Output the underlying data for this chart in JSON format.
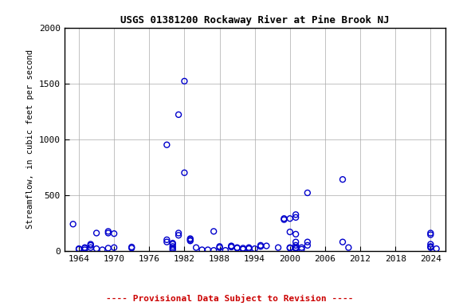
{
  "title": "USGS 01381200 Rockaway River at Pine Brook NJ",
  "ylabel": "Streamflow, in cubic feet per second",
  "xlim": [
    1961.5,
    2026.5
  ],
  "ylim": [
    0,
    2000
  ],
  "yticks": [
    0,
    500,
    1000,
    1500,
    2000
  ],
  "xticks": [
    1964,
    1970,
    1976,
    1982,
    1988,
    1994,
    2000,
    2006,
    2012,
    2018,
    2024
  ],
  "marker_color": "#0000CC",
  "marker_size": 5,
  "grid_color": "#aaaaaa",
  "background_color": "#ffffff",
  "footer_text": "---- Provisional Data Subject to Revision ----",
  "footer_color": "#cc0000",
  "data_points": [
    [
      1963,
      240
    ],
    [
      1964,
      20
    ],
    [
      1964,
      15
    ],
    [
      1965,
      30
    ],
    [
      1965,
      25
    ],
    [
      1965,
      10
    ],
    [
      1966,
      60
    ],
    [
      1966,
      50
    ],
    [
      1966,
      30
    ],
    [
      1967,
      160
    ],
    [
      1967,
      20
    ],
    [
      1968,
      10
    ],
    [
      1969,
      175
    ],
    [
      1969,
      160
    ],
    [
      1969,
      25
    ],
    [
      1970,
      155
    ],
    [
      1970,
      30
    ],
    [
      1973,
      35
    ],
    [
      1973,
      25
    ],
    [
      1979,
      950
    ],
    [
      1979,
      100
    ],
    [
      1979,
      80
    ],
    [
      1980,
      70
    ],
    [
      1980,
      60
    ],
    [
      1980,
      40
    ],
    [
      1980,
      25
    ],
    [
      1980,
      10
    ],
    [
      1981,
      1220
    ],
    [
      1981,
      160
    ],
    [
      1981,
      140
    ],
    [
      1982,
      1520
    ],
    [
      1982,
      700
    ],
    [
      1983,
      110
    ],
    [
      1983,
      100
    ],
    [
      1983,
      90
    ],
    [
      1984,
      30
    ],
    [
      1985,
      10
    ],
    [
      1986,
      10
    ],
    [
      1987,
      175
    ],
    [
      1987,
      5
    ],
    [
      1988,
      40
    ],
    [
      1988,
      30
    ],
    [
      1989,
      5
    ],
    [
      1990,
      45
    ],
    [
      1990,
      40
    ],
    [
      1990,
      35
    ],
    [
      1991,
      30
    ],
    [
      1991,
      25
    ],
    [
      1992,
      25
    ],
    [
      1992,
      15
    ],
    [
      1993,
      30
    ],
    [
      1993,
      20
    ],
    [
      1994,
      20
    ],
    [
      1995,
      50
    ],
    [
      1995,
      40
    ],
    [
      1996,
      45
    ],
    [
      1998,
      30
    ],
    [
      1999,
      290
    ],
    [
      1999,
      280
    ],
    [
      2000,
      290
    ],
    [
      2000,
      170
    ],
    [
      2000,
      30
    ],
    [
      2000,
      25
    ],
    [
      2001,
      325
    ],
    [
      2001,
      300
    ],
    [
      2001,
      150
    ],
    [
      2001,
      80
    ],
    [
      2001,
      50
    ],
    [
      2001,
      30
    ],
    [
      2001,
      25
    ],
    [
      2001,
      20
    ],
    [
      2002,
      30
    ],
    [
      2002,
      15
    ],
    [
      2003,
      520
    ],
    [
      2003,
      80
    ],
    [
      2003,
      50
    ],
    [
      2009,
      640
    ],
    [
      2009,
      80
    ],
    [
      2010,
      30
    ],
    [
      2024,
      160
    ],
    [
      2024,
      145
    ],
    [
      2024,
      60
    ],
    [
      2024,
      40
    ],
    [
      2024,
      30
    ],
    [
      2025,
      20
    ]
  ]
}
